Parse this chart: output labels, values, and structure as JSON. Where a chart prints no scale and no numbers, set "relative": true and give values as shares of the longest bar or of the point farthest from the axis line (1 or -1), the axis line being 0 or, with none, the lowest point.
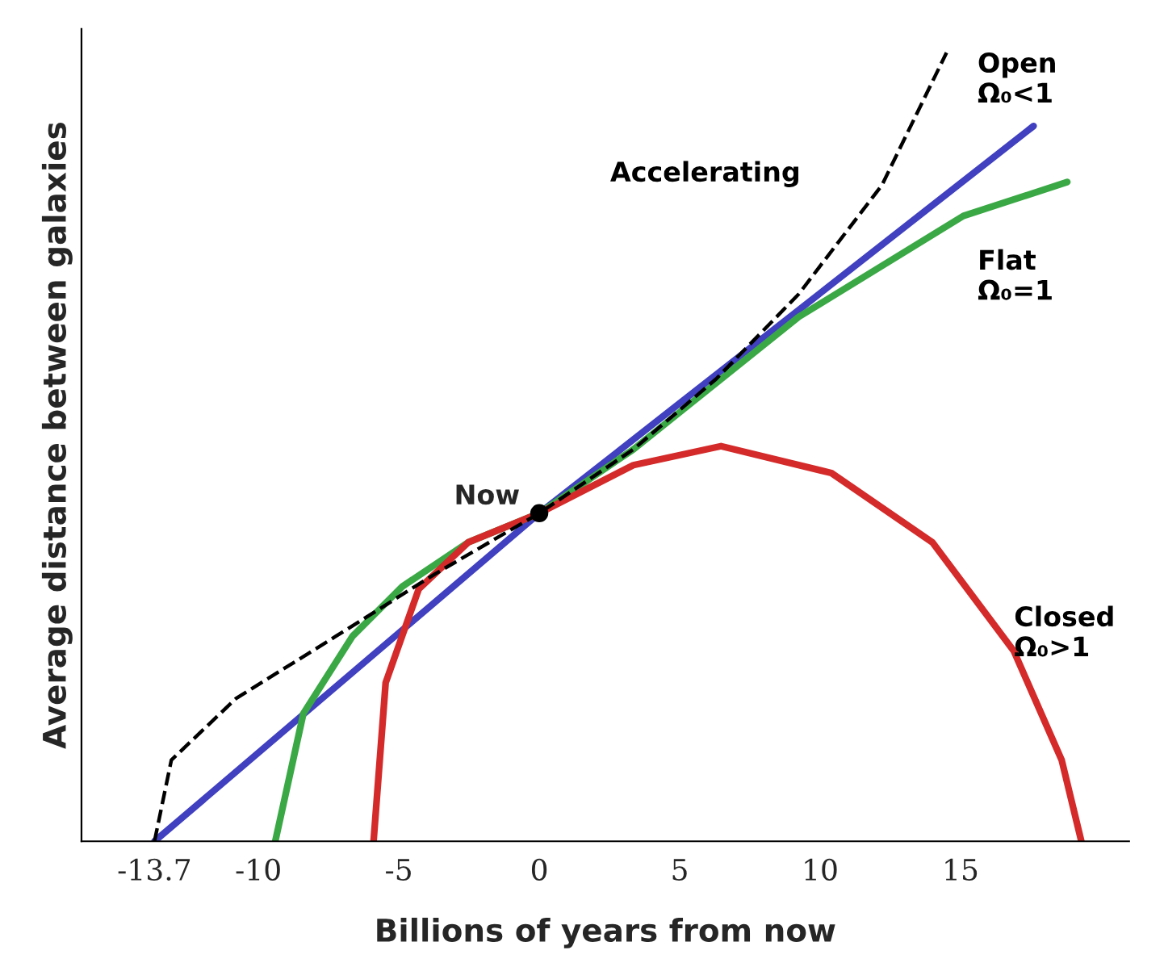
{
  "chart_data": {
    "type": "line",
    "relative": true,
    "xlabel": "Billions of years from now",
    "ylabel": "Average distance between galaxies",
    "xlim": [
      -16.3,
      21
    ],
    "xticks": [
      -13.7,
      -10,
      -5,
      0,
      5,
      10,
      15
    ],
    "grid": false,
    "legend": false,
    "series": [
      {
        "name": "Accelerating",
        "color": "#000000",
        "line_style": "dashed",
        "x": [
          -13.7,
          -13.1,
          -10.8,
          -7.24,
          -3.71,
          0,
          3.35,
          6.29,
          9.24,
          12.2,
          14.5
        ],
        "values": [
          0,
          0.103,
          0.181,
          0.26,
          0.339,
          0.416,
          0.497,
          0.586,
          0.694,
          0.832,
          1.0
        ]
      },
      {
        "name": "Open\nΩ₀<1",
        "color": "#4040c0",
        "x": [
          -13.7,
          0,
          17.6
        ],
        "values": [
          0,
          0.416,
          0.907
        ]
      },
      {
        "name": "Flat\nΩ₀=1",
        "color": "#3aa845",
        "x": [
          -9.4,
          -8.4,
          -6.65,
          -4.88,
          -2.53,
          0,
          3.35,
          9.24,
          15.1,
          18.8
        ],
        "values": [
          0,
          0.162,
          0.26,
          0.323,
          0.379,
          0.416,
          0.497,
          0.665,
          0.793,
          0.836
        ]
      },
      {
        "name": "Closed\nΩ₀>1",
        "color": "#d42a2a",
        "x": [
          -5.9,
          -5.47,
          -4.29,
          -2.53,
          0,
          3.35,
          6.47,
          10.4,
          14.0,
          16.9,
          18.6,
          19.3
        ],
        "values": [
          0,
          0.201,
          0.32,
          0.379,
          0.416,
          0.477,
          0.501,
          0.467,
          0.379,
          0.241,
          0.103,
          0
        ]
      },
      {
        "type": "scatter",
        "color": "#000000",
        "marker": "circle",
        "x": [
          0
        ],
        "values": [
          0.416
        ]
      }
    ],
    "annotations": [
      {
        "text": "Now",
        "x": 0,
        "y": 0.416
      }
    ]
  }
}
